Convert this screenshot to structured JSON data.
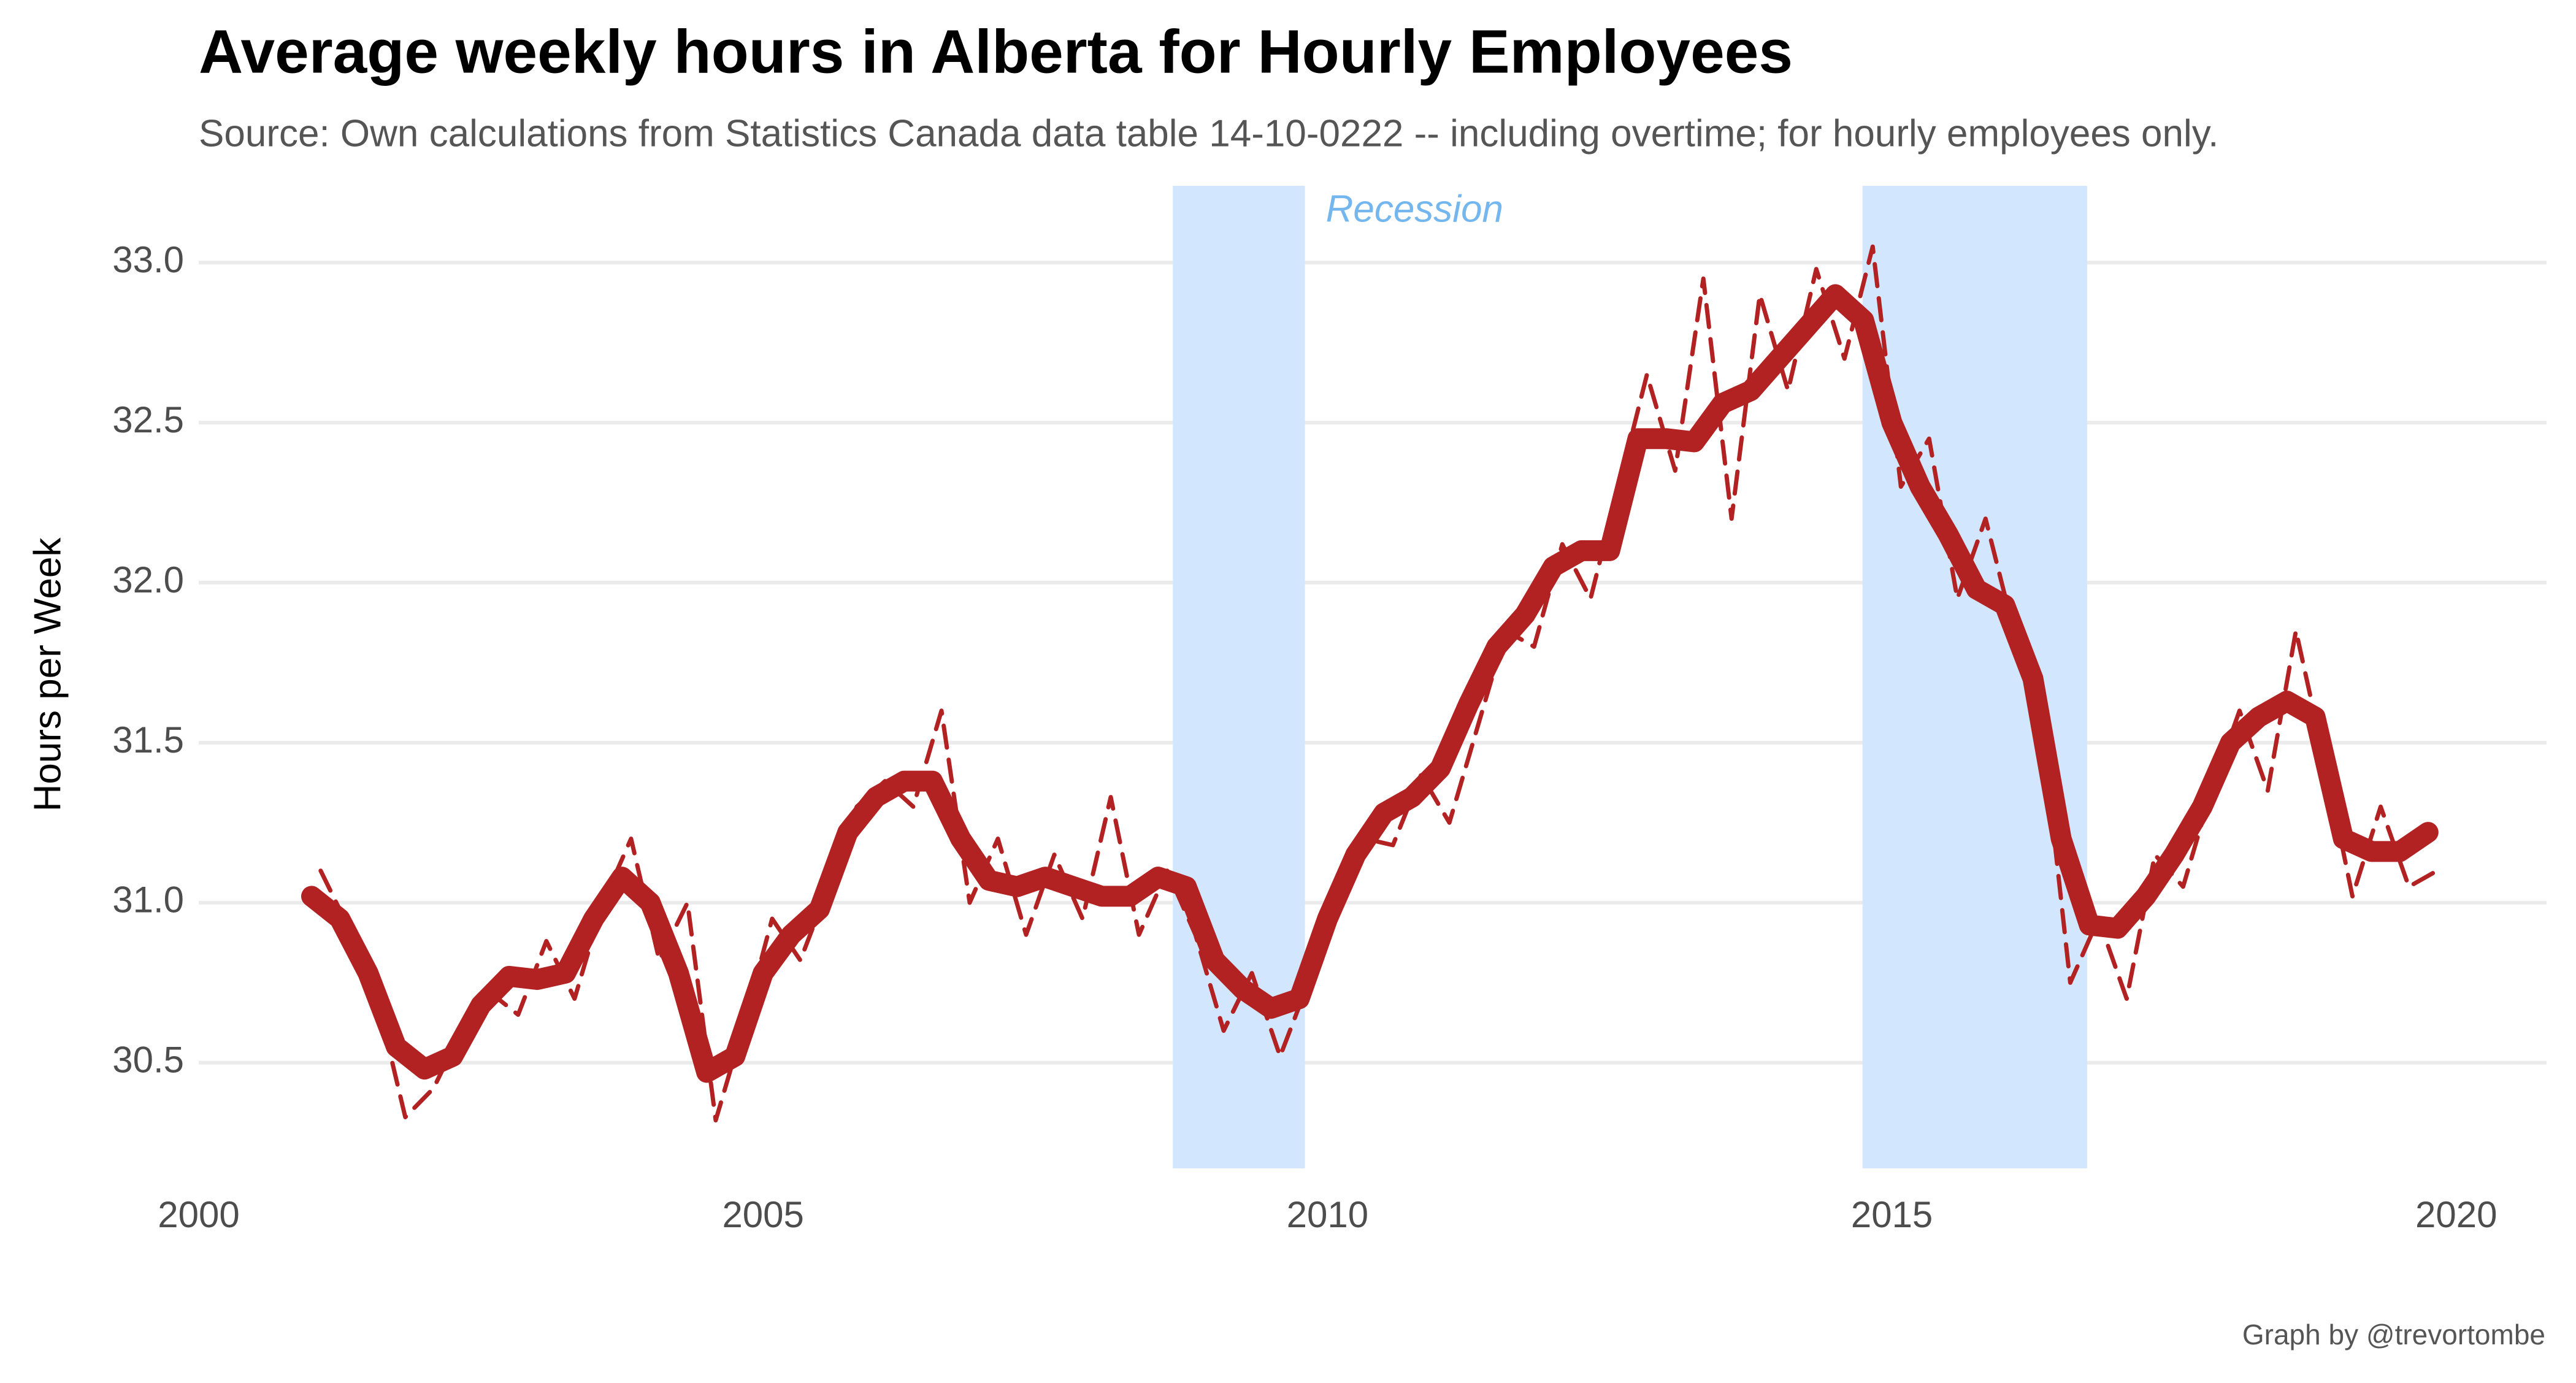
{
  "chart_data": {
    "type": "line",
    "title": "Average weekly hours in Alberta for Hourly Employees",
    "subtitle": "Source: Own calculations from  Statistics Canada data table 14-10-0222 -- including overtime; for hourly employees only.",
    "ylabel": "Hours per Week",
    "caption": "Graph by @trevortombe",
    "shaded_regions": {
      "label": "Recession",
      "color": "#d2e7fd",
      "label_color": "#74b6ee",
      "ranges": [
        [
          2008.63,
          2009.8
        ],
        [
          2014.74,
          2016.73
        ]
      ]
    },
    "xlim": [
      2000,
      2020.8
    ],
    "ylim": [
      30.17,
      33.24
    ],
    "xticks": [
      2000,
      2005,
      2010,
      2015,
      2020
    ],
    "yticks": [
      30.5,
      {
        "value": 31,
        "label": "31.0"
      },
      31.5,
      {
        "value": 32,
        "label": "32.0"
      },
      32.5,
      {
        "value": 33,
        "label": "33.0"
      }
    ],
    "grid": true,
    "series": [
      {
        "color": "#b22222",
        "line_style": "dashed",
        "x": [
          2001.08,
          2001.33,
          2001.58,
          2001.83,
          2002.08,
          2002.33,
          2002.58,
          2002.83,
          2003.08,
          2003.33,
          2003.58,
          2003.83,
          2004.08,
          2004.33,
          2004.58,
          2004.83,
          2005.08,
          2005.33,
          2005.58,
          2005.83,
          2006.08,
          2006.33,
          2006.58,
          2006.83,
          2007.08,
          2007.33,
          2007.58,
          2007.83,
          2008.08,
          2008.33,
          2008.58,
          2008.83,
          2009.08,
          2009.33,
          2009.58,
          2009.83,
          2010.08,
          2010.33,
          2010.58,
          2010.83,
          2011.08,
          2011.33,
          2011.58,
          2011.83,
          2012.08,
          2012.33,
          2012.58,
          2012.83,
          2013.08,
          2013.33,
          2013.58,
          2013.83,
          2014.08,
          2014.33,
          2014.58,
          2014.83,
          2015.08,
          2015.33,
          2015.58,
          2015.83,
          2016.08,
          2016.33,
          2016.58,
          2016.83,
          2017.08,
          2017.33,
          2017.58,
          2017.83,
          2018.08,
          2018.33,
          2018.58,
          2018.83,
          2019.08,
          2019.33,
          2019.58,
          2019.83
        ],
        "values": [
          31.1,
          30.92,
          30.7,
          30.33,
          30.42,
          30.6,
          30.72,
          30.65,
          30.88,
          30.7,
          31.0,
          31.2,
          30.82,
          31.0,
          30.32,
          30.62,
          30.95,
          30.82,
          31.05,
          31.3,
          31.38,
          31.3,
          31.6,
          31.0,
          31.2,
          30.9,
          31.15,
          30.95,
          31.33,
          30.9,
          31.1,
          30.9,
          30.6,
          30.78,
          30.52,
          30.75,
          31.0,
          31.2,
          31.18,
          31.4,
          31.25,
          31.55,
          31.85,
          31.8,
          32.12,
          31.95,
          32.3,
          32.65,
          32.35,
          32.95,
          32.2,
          32.9,
          32.6,
          32.98,
          32.7,
          33.05,
          32.3,
          32.45,
          31.95,
          32.2,
          31.85,
          31.55,
          30.75,
          30.95,
          30.7,
          31.15,
          31.05,
          31.35,
          31.6,
          31.35,
          31.85,
          31.45,
          31.02,
          31.3,
          31.05,
          31.1
        ]
      },
      {
        "color": "#b22222",
        "line_style": "solid",
        "x": [
          2001,
          2001.25,
          2001.5,
          2001.75,
          2002,
          2002.25,
          2002.5,
          2002.75,
          2003,
          2003.25,
          2003.5,
          2003.75,
          2004,
          2004.25,
          2004.5,
          2004.75,
          2005,
          2005.25,
          2005.5,
          2005.75,
          2006,
          2006.25,
          2006.5,
          2006.75,
          2007,
          2007.25,
          2007.5,
          2007.75,
          2008,
          2008.25,
          2008.5,
          2008.75,
          2009,
          2009.25,
          2009.5,
          2009.75,
          2010,
          2010.25,
          2010.5,
          2010.75,
          2011,
          2011.25,
          2011.5,
          2011.75,
          2012,
          2012.25,
          2012.5,
          2012.75,
          2013,
          2013.25,
          2013.5,
          2013.75,
          2014,
          2014.25,
          2014.5,
          2014.75,
          2015,
          2015.25,
          2015.5,
          2015.75,
          2016,
          2016.25,
          2016.5,
          2016.75,
          2017,
          2017.25,
          2017.5,
          2017.75,
          2018,
          2018.25,
          2018.5,
          2018.75,
          2019,
          2019.25,
          2019.5,
          2019.75
        ],
        "values": [
          31.02,
          30.95,
          30.78,
          30.55,
          30.48,
          30.52,
          30.68,
          30.77,
          30.76,
          30.78,
          30.95,
          31.08,
          31.0,
          30.78,
          30.47,
          30.52,
          30.78,
          30.9,
          30.98,
          31.22,
          31.33,
          31.38,
          31.38,
          31.2,
          31.07,
          31.05,
          31.08,
          31.05,
          31.02,
          31.02,
          31.08,
          31.05,
          30.82,
          30.73,
          30.67,
          30.7,
          30.95,
          31.15,
          31.28,
          31.33,
          31.42,
          31.62,
          31.8,
          31.9,
          32.05,
          32.1,
          32.1,
          32.45,
          32.45,
          32.44,
          32.56,
          32.6,
          32.7,
          32.8,
          32.9,
          32.82,
          32.5,
          32.3,
          32.15,
          31.98,
          31.93,
          31.7,
          31.2,
          30.93,
          30.92,
          31.02,
          31.15,
          31.3,
          31.5,
          31.58,
          31.63,
          31.58,
          31.2,
          31.16,
          31.16,
          31.22
        ]
      }
    ]
  }
}
